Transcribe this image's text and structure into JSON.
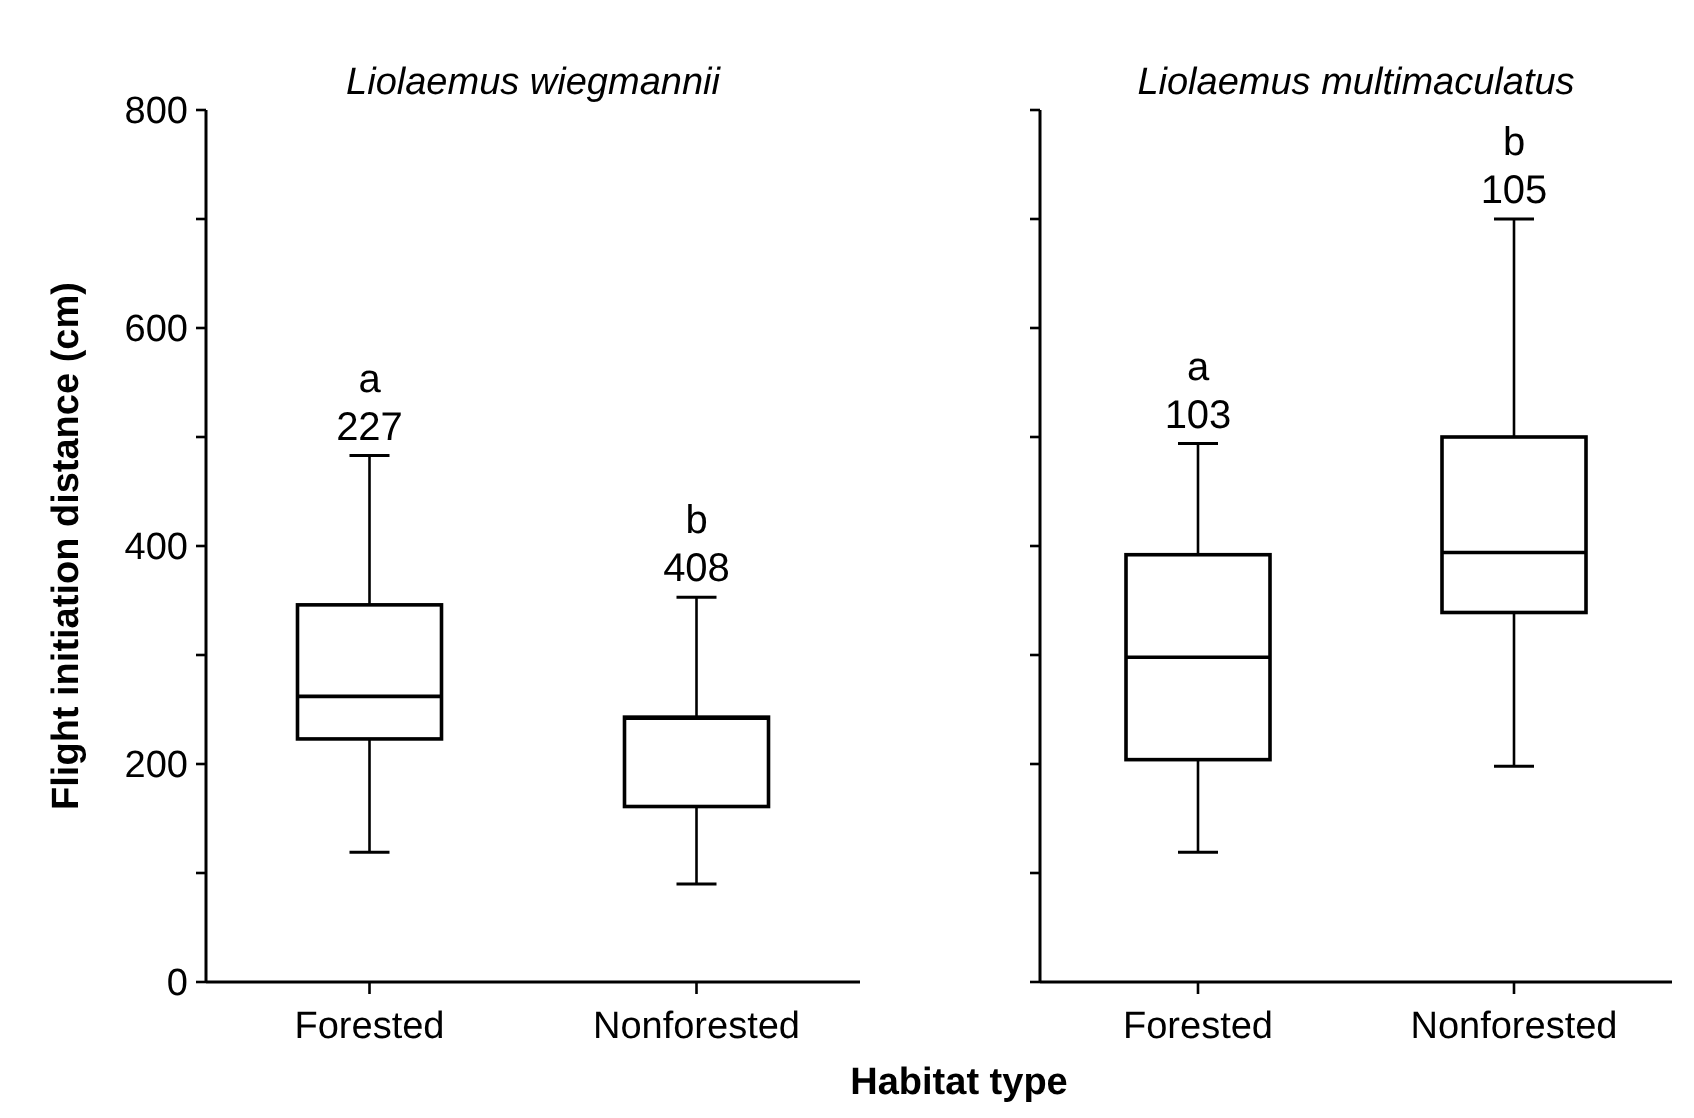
{
  "chart_data": [
    {
      "type": "box",
      "title": "Liolaemus wiegmannii",
      "ylabel": "Flight initiation distance (cm)",
      "xlabel": "Habitat type",
      "categories": [
        "Forested",
        "Nonforested"
      ],
      "boxes": [
        {
          "low": 119,
          "q1": 223,
          "median": 262,
          "q3": 346,
          "high": 483
        },
        {
          "low": 90,
          "q1": 161,
          "median": 242,
          "q3": 243,
          "high": 353
        }
      ],
      "ylim": [
        0,
        800
      ],
      "yticks": [
        0,
        {
          "value": 100,
          "label": null
        },
        200,
        {
          "value": 300,
          "label": null
        },
        400,
        {
          "value": 500,
          "label": null
        },
        600,
        {
          "value": 700,
          "label": null
        },
        800
      ],
      "color": "#000000",
      "annotations": [
        "a\n227",
        "b\n408"
      ]
    },
    {
      "type": "box",
      "title": "Liolaemus multimaculatus",
      "categories": [
        "Forested",
        "Nonforested"
      ],
      "boxes": [
        {
          "low": 119,
          "q1": 204,
          "median": 298,
          "q3": 392,
          "high": 494
        },
        {
          "low": 198,
          "q1": 339,
          "median": 394,
          "q3": 500,
          "high": 700
        }
      ],
      "ylim": [
        0,
        800
      ],
      "yticks": [
        0,
        {
          "value": 100,
          "label": null
        },
        200,
        {
          "value": 300,
          "label": null
        },
        400,
        {
          "value": 500,
          "label": null
        },
        600,
        {
          "value": 700,
          "label": null
        },
        800
      ],
      "tick_labels": "x",
      "color": "#000000",
      "annotations": [
        "a\n103",
        "b\n105"
      ]
    }
  ]
}
